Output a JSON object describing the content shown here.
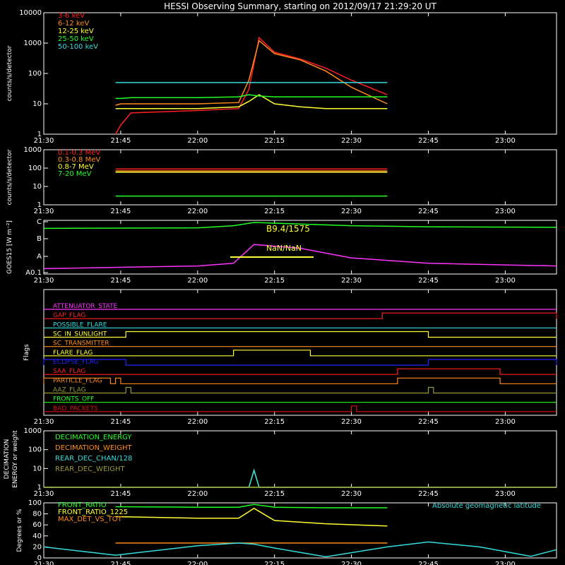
{
  "title": "HESSI Observing Summary, starting on 2012/09/17 21:29:20 UT",
  "colors": {
    "background": "#000000",
    "axes": "#ffffff",
    "red": "#ff2020",
    "orange": "#ff8c1a",
    "yellow": "#ffff33",
    "green": "#22ff22",
    "cyan": "#33dddd",
    "magenta": "#ff33ff",
    "blue": "#2222ff",
    "olive": "#999933",
    "dark_red": "#dd1111"
  },
  "x_axis": {
    "start": "21:30",
    "end": "23:10",
    "tick_labels": [
      "21:30",
      "21:45",
      "22:00",
      "22:15",
      "22:30",
      "22:45",
      "23:00"
    ]
  },
  "chart_data": [
    {
      "id": "hxr",
      "type": "line",
      "ylabel": "counts/s/detector",
      "y_scale": "log",
      "ylim": [
        1,
        10000
      ],
      "y_tick_labels": [
        "1",
        "10",
        "100",
        "1000",
        "10000"
      ],
      "legend_position": "top-left",
      "x": [
        "21:44",
        "21:45",
        "21:47",
        "22:00",
        "22:08",
        "22:10",
        "22:12",
        "22:15",
        "22:20",
        "22:25",
        "22:30",
        "22:37"
      ],
      "series": [
        {
          "name": "3-6 keV",
          "color": "red",
          "values": [
            1,
            2,
            5,
            6,
            7,
            30,
            1500,
            500,
            300,
            150,
            60,
            20
          ]
        },
        {
          "name": "6-12 keV",
          "color": "orange",
          "values": [
            9,
            10,
            10,
            10,
            11,
            60,
            1200,
            450,
            280,
            120,
            35,
            10
          ]
        },
        {
          "name": "12-25 keV",
          "color": "yellow",
          "values": [
            7,
            7,
            7,
            7,
            8,
            12,
            20,
            10,
            8,
            7,
            7,
            7
          ]
        },
        {
          "name": "25-50 keV",
          "color": "green",
          "values": [
            15,
            15,
            16,
            16,
            17,
            20,
            18,
            17,
            17,
            17,
            17,
            17
          ]
        },
        {
          "name": "50-100 keV",
          "color": "cyan",
          "values": [
            50,
            50,
            50,
            50,
            50,
            50,
            50,
            50,
            50,
            50,
            50,
            50
          ]
        }
      ]
    },
    {
      "id": "gamma",
      "type": "line",
      "ylabel": "counts/s/detector",
      "y_scale": "log",
      "ylim": [
        1,
        1000
      ],
      "y_tick_labels": [
        "1",
        "10",
        "100",
        "1000"
      ],
      "legend_position": "top-left",
      "x": [
        "21:44",
        "22:00",
        "22:12",
        "22:20",
        "22:37"
      ],
      "series": [
        {
          "name": "0.1-0.3 MeV",
          "color": "red",
          "values": [
            90,
            90,
            90,
            90,
            90
          ]
        },
        {
          "name": "0.3-0.8 MeV",
          "color": "orange",
          "values": [
            70,
            70,
            70,
            70,
            70
          ]
        },
        {
          "name": "0.8-7 MeV",
          "color": "yellow",
          "values": [
            60,
            60,
            60,
            60,
            60
          ]
        },
        {
          "name": "7-20 MeV",
          "color": "green",
          "values": [
            3,
            3,
            3,
            3,
            3
          ]
        }
      ]
    },
    {
      "id": "goes",
      "type": "line",
      "ylabel": "GOES15 [W m⁻²]",
      "y_scale": "log",
      "ylim": [
        "A0.1",
        "C"
      ],
      "y_tick_labels": [
        "A0.1",
        "A",
        "B",
        "C"
      ],
      "annotations": [
        "B9.4/1575",
        "NaN/NaN"
      ],
      "x": [
        "21:30",
        "22:00",
        "22:07",
        "22:11",
        "22:20",
        "22:30",
        "22:45",
        "23:10"
      ],
      "series": [
        {
          "name": "",
          "color": "green",
          "values": [
            0.85,
            0.86,
            0.9,
            0.96,
            0.93,
            0.9,
            0.88,
            0.87
          ]
        },
        {
          "name": "",
          "color": "magenta",
          "values": [
            0.1,
            0.15,
            0.2,
            0.55,
            0.48,
            0.3,
            0.2,
            0.15
          ]
        }
      ]
    },
    {
      "id": "flags",
      "type": "line",
      "ylabel": "Flags",
      "items": [
        {
          "name": "ATTENUATOR_STATE",
          "color": "magenta",
          "high": []
        },
        {
          "name": "GAP_FLAG",
          "color": "red",
          "high": [
            [
              "22:36",
              "23:10"
            ]
          ]
        },
        {
          "name": "POSSIBLE_FLARE",
          "color": "cyan",
          "high": []
        },
        {
          "name": "SC_IN_SUNLIGHT",
          "color": "yellow",
          "high": [
            [
              "21:46",
              "22:45"
            ]
          ]
        },
        {
          "name": "SC_TRANSMITTER",
          "color": "orange",
          "high": []
        },
        {
          "name": "FLARE_FLAG",
          "color": "yellow",
          "high": [
            [
              "22:07",
              "22:22"
            ]
          ]
        },
        {
          "name": "ECLIPSE_FLAG",
          "color": "blue",
          "high": [
            [
              "21:30",
              "21:46"
            ],
            [
              "22:45",
              "23:10"
            ]
          ]
        },
        {
          "name": "SAA_FLAG",
          "color": "red",
          "high": [
            [
              "22:39",
              "22:59"
            ]
          ]
        },
        {
          "name": "PARTICLE_FLAG",
          "color": "orange",
          "high": [
            [
              "21:30",
              "21:43"
            ],
            [
              "21:44",
              "21:45"
            ],
            [
              "22:39",
              "22:59"
            ]
          ]
        },
        {
          "name": "AAZ_FLAG",
          "color": "olive",
          "high": [
            [
              "21:46",
              "21:47"
            ],
            [
              "22:45",
              "22:46"
            ]
          ]
        },
        {
          "name": "FRONTS_OFF",
          "color": "green",
          "high": []
        },
        {
          "name": "BAD_PACKETS",
          "color": "dark_red",
          "high": [
            [
              "22:30",
              "22:31"
            ]
          ]
        }
      ]
    },
    {
      "id": "decimation",
      "type": "line",
      "ylabel": "DECIMATION ENERGY or weight",
      "y_scale": "log",
      "ylim": [
        1,
        1000
      ],
      "y_tick_labels": [
        "1",
        "10",
        "100",
        "1000"
      ],
      "legend_position": "top-left",
      "x": [
        "21:30",
        "22:10",
        "22:11",
        "22:12",
        "23:10"
      ],
      "series": [
        {
          "name": "DECIMATION_ENERGY",
          "color": "green",
          "values": [
            1,
            1,
            1,
            1,
            1
          ]
        },
        {
          "name": "DECIMATION_WEIGHT",
          "color": "orange",
          "values": [
            1,
            1,
            8,
            1,
            1
          ]
        },
        {
          "name": "REAR_DEC_CHAN/128",
          "color": "cyan",
          "values": [
            1,
            1,
            8,
            1,
            1
          ]
        },
        {
          "name": "REAR_DEC_WEIGHT",
          "color": "olive",
          "values": [
            1,
            1,
            1,
            1,
            1
          ]
        }
      ]
    },
    {
      "id": "ratios",
      "type": "line",
      "ylabel": "Degrees or %",
      "ylim": [
        0,
        100
      ],
      "y_tick_labels": [
        "0",
        "20",
        "40",
        "60",
        "80",
        "100"
      ],
      "legend_position": "top-left",
      "extra_label": "Absolute geomagnetic latitude",
      "x": [
        "21:30",
        "21:44",
        "22:00",
        "22:08",
        "22:11",
        "22:15",
        "22:25",
        "22:37",
        "22:45",
        "22:55",
        "23:05",
        "23:10"
      ],
      "series": [
        {
          "name": "FRONT_RATIO",
          "color": "green",
          "values": [
            null,
            93,
            92,
            92,
            97,
            92,
            91,
            91,
            null,
            null,
            null,
            null
          ]
        },
        {
          "name": "FRONT_RATIO_1225",
          "color": "yellow",
          "values": [
            null,
            75,
            72,
            72,
            90,
            68,
            62,
            58,
            null,
            null,
            null,
            null
          ]
        },
        {
          "name": "MAX_DET_VS_TOT",
          "color": "orange",
          "values": [
            null,
            27,
            27,
            27,
            27,
            27,
            27,
            27,
            null,
            null,
            null,
            null
          ]
        },
        {
          "name": "Absolute geomagnetic latitude",
          "color": "cyan",
          "values": [
            20,
            5,
            22,
            27,
            25,
            18,
            2,
            20,
            29,
            20,
            3,
            15
          ]
        }
      ]
    }
  ]
}
